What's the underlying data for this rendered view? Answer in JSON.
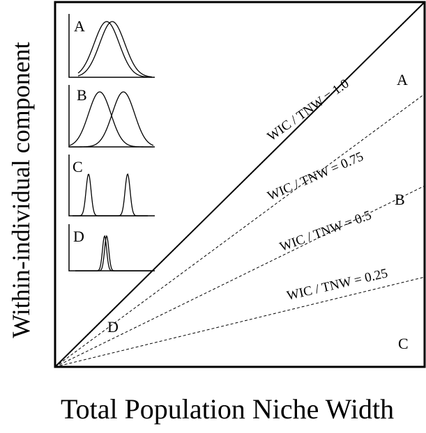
{
  "axes": {
    "xlabel": "Total Population Niche Width",
    "ylabel": "Within-individual component"
  },
  "reference_lines": [
    {
      "label": "WIC / TNW = 1.0",
      "ratio": 1.0,
      "style": "solid"
    },
    {
      "label": "WIC / TNW = 0.75",
      "ratio": 0.75,
      "style": "dashed"
    },
    {
      "label": "WIC / TNW = 0.5",
      "ratio": 0.5,
      "style": "dashed"
    },
    {
      "label": "WIC / TNW = 0.25",
      "ratio": 0.25,
      "style": "dashed"
    }
  ],
  "region_labels": {
    "A": "A",
    "B": "B",
    "C": "C",
    "D": "D"
  },
  "insets": [
    {
      "label": "A",
      "description_curves": "two broad, heavily overlapping curves"
    },
    {
      "label": "B",
      "description_curves": "two broad, partially overlapping curves"
    },
    {
      "label": "C",
      "description_curves": "two narrow, separated curves"
    },
    {
      "label": "D",
      "description_curves": "two narrow, overlapping curves"
    }
  ]
}
